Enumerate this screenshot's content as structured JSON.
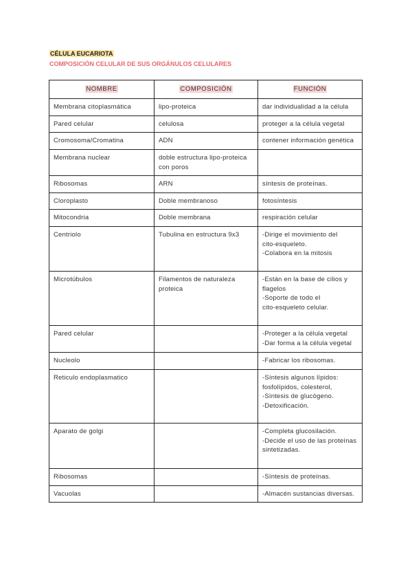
{
  "title": "CÉLULA EUCARIOTA",
  "subtitle": "COMPOSICIÓN CELULAR DE SUS ORGÁNULOS CELULARES",
  "headers": [
    "NOMBRE",
    "COMPOSICIÓN",
    "FUNCIÓN"
  ],
  "rows": [
    {
      "nombre": "Membrana citoplasmática",
      "composicion": "lipo-proteica",
      "funcion": "dar individualidad a la célula"
    },
    {
      "nombre": "Pared celular",
      "composicion": "celulosa",
      "funcion": "proteger a la célula vegetal"
    },
    {
      "nombre": "Cromosoma/Cromatina",
      "composicion": "ADN",
      "funcion": "contener información genética"
    },
    {
      "nombre": "Membrana nuclear",
      "composicion": "doble estructura lipo-proteica\ncon poros",
      "funcion": ""
    },
    {
      "nombre": "Ribosomas",
      "composicion": "ARN",
      "funcion": "síntesis de proteínas."
    },
    {
      "nombre": "Cloroplasto",
      "composicion": "Doble membranoso",
      "funcion": "fotosíntesis"
    },
    {
      "nombre": "Mitocondria",
      "composicion": "Doble membrana",
      "funcion": "respiración celular"
    },
    {
      "nombre": "Centriolo",
      "composicion": "Tubulina en estructura 9x3",
      "funcion": "-Dirige el movimiento del\ncito-esqueleto.\n-Colabora en la mitosis"
    },
    {
      "nombre": "Microtúbulos",
      "composicion": "Filamentos de naturaleza\nproteica",
      "funcion": "-Están en la base de cilios y\nflagelos\n-Soporte de todo el\ncito-esqueleto celular."
    },
    {
      "nombre": "Pared celular",
      "composicion": "",
      "funcion": "-Proteger a la célula vegetal\n-Dar forma a la célula vegetal"
    },
    {
      "nombre": "Nucleolo",
      "composicion": "",
      "funcion": "-Fabricar los ribosomas."
    },
    {
      "nombre": "Reticulo endoplasmatico",
      "composicion": "",
      "funcion": "-Síntesis algunos lípidos:\nfosfolípidos, colesterol,\n-Síntesis de glucógeno.\n-Detoxificación."
    },
    {
      "nombre": "Aparato de golgi",
      "composicion": "",
      "funcion": "-Completa glucosilación.\n-Decide el uso de las proteínas\nsintetizadas."
    },
    {
      "nombre": "Ribosomas",
      "composicion": "",
      "funcion": "-Síntesis de proteínas."
    },
    {
      "nombre": "Vacuolas",
      "composicion": "",
      "funcion": "-Almacén sustancias diversas."
    }
  ]
}
